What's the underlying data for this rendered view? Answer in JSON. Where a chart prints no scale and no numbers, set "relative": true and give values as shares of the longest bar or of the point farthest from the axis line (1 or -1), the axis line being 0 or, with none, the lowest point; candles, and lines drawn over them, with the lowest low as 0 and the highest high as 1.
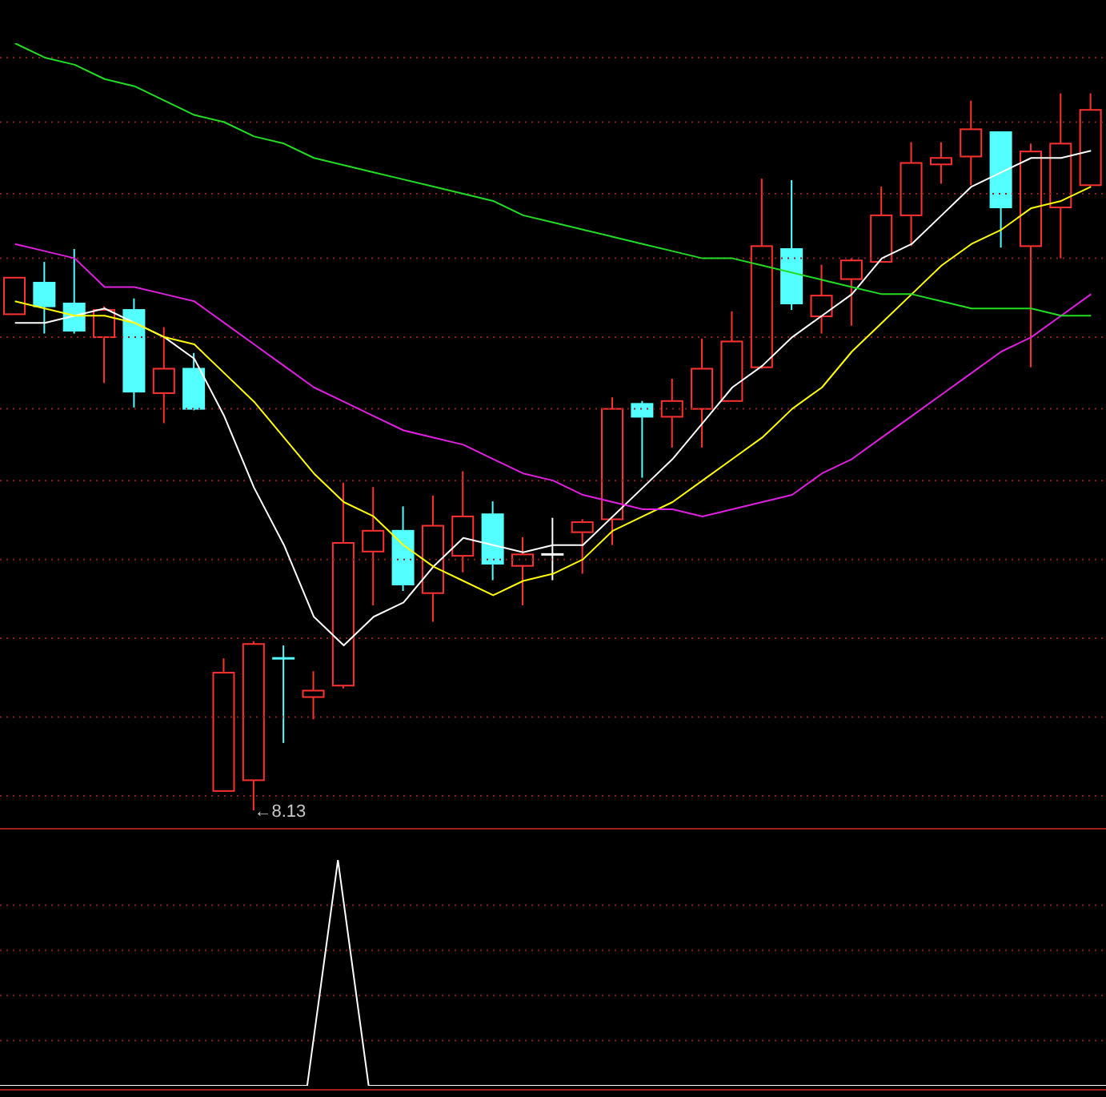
{
  "chart_data": [
    {
      "type": "candlestick",
      "relative": true,
      "tick_labels": false,
      "categories": [
        null,
        null,
        null,
        null,
        null,
        null,
        null,
        null,
        null,
        null,
        null,
        null,
        null,
        null,
        null,
        null,
        null,
        null,
        null,
        null,
        null,
        null,
        null,
        null,
        null,
        null,
        null,
        null,
        null,
        null,
        null,
        null,
        null,
        null,
        null,
        null,
        null
      ],
      "ohlc": [
        [
          0.692,
          0.743,
          0.692,
          0.743
        ],
        [
          0.736,
          0.765,
          0.665,
          0.703
        ],
        [
          0.707,
          0.783,
          0.665,
          0.669
        ],
        [
          0.66,
          0.703,
          0.596,
          0.698
        ],
        [
          0.698,
          0.714,
          0.562,
          0.584
        ],
        [
          0.582,
          0.674,
          0.54,
          0.616
        ],
        [
          0.616,
          0.638,
          0.558,
          0.56
        ],
        [
          0.027,
          0.212,
          0.027,
          0.192
        ],
        [
          0.042,
          0.236,
          0,
          0.232
        ],
        [
          0.212,
          0.23,
          0.094,
          0.212
        ],
        [
          0.158,
          0.194,
          0.127,
          0.167
        ],
        [
          0.174,
          0.457,
          0.17,
          0.373
        ],
        [
          0.361,
          0.451,
          0.286,
          0.39
        ],
        [
          0.39,
          0.424,
          0.306,
          0.315
        ],
        [
          0.303,
          0.439,
          0.263,
          0.397
        ],
        [
          0.355,
          0.473,
          0.332,
          0.41
        ],
        [
          0.413,
          0.431,
          0.321,
          0.344
        ],
        [
          0.341,
          0.381,
          0.286,
          0.357
        ],
        [
          0.357,
          0.408,
          0.321,
          0.357
        ],
        [
          0.388,
          0.406,
          0.33,
          0.402
        ],
        [
          0.406,
          0.576,
          0.37,
          0.56
        ],
        [
          0.567,
          0.571,
          0.464,
          0.549
        ],
        [
          0.549,
          0.602,
          0.506,
          0.571
        ],
        [
          0.56,
          0.658,
          0.506,
          0.616
        ],
        [
          0.571,
          0.696,
          0.571,
          0.654
        ],
        [
          0.618,
          0.881,
          0.616,
          0.787
        ],
        [
          0.783,
          0.879,
          0.698,
          0.707
        ],
        [
          0.689,
          0.761,
          0.665,
          0.718
        ],
        [
          0.741,
          0.77,
          0.676,
          0.767
        ],
        [
          0.765,
          0.87,
          0.765,
          0.83
        ],
        [
          0.83,
          0.932,
          0.787,
          0.903
        ],
        [
          0.901,
          0.932,
          0.874,
          0.91
        ],
        [
          0.912,
          0.99,
          0.872,
          0.95
        ],
        [
          0.946,
          0.946,
          0.785,
          0.841
        ],
        [
          0.787,
          0.93,
          0.618,
          0.919
        ],
        [
          0.841,
          1,
          0.77,
          0.93
        ],
        [
          0.872,
          1,
          0.872,
          0.977
        ]
      ],
      "colors": [
        "#ff3232",
        "#54ffff",
        "#54ffff",
        "#ff3232",
        "#54ffff",
        "#ff3232",
        "#54ffff",
        "#ff3232",
        "#ff3232",
        "#54ffff",
        "#ff3232",
        "#ff3232",
        "#ff3232",
        "#54ffff",
        "#ff3232",
        "#ff3232",
        "#54ffff",
        "#ff3232",
        "#ffffff",
        "#ff3232",
        "#ff3232",
        "#54ffff",
        "#ff3232",
        "#ff3232",
        "#ff3232",
        "#ff3232",
        "#54ffff",
        "#ff3232",
        "#ff3232",
        "#ff3232",
        "#ff3232",
        "#ff3232",
        "#ff3232",
        "#54ffff",
        "#ff3232",
        "#ff3232",
        "#ff3232"
      ],
      "series": [
        {
          "type": "line",
          "color": "#ffffff",
          "values": [
            0.68,
            0.68,
            0.69,
            0.7,
            0.68,
            0.66,
            0.63,
            0.55,
            0.45,
            0.37,
            0.27,
            0.23,
            0.27,
            0.29,
            0.34,
            0.38,
            0.37,
            0.36,
            0.37,
            0.37,
            0.41,
            0.45,
            0.49,
            0.54,
            0.59,
            0.62,
            0.66,
            0.69,
            0.72,
            0.77,
            0.79,
            0.83,
            0.87,
            0.89,
            0.91,
            0.91,
            0.92
          ]
        },
        {
          "type": "line",
          "color": "#ffff00",
          "values": [
            0.71,
            0.7,
            0.69,
            0.69,
            0.68,
            0.66,
            0.65,
            0.61,
            0.57,
            0.52,
            0.47,
            0.43,
            0.41,
            0.37,
            0.34,
            0.32,
            0.3,
            0.32,
            0.33,
            0.35,
            0.39,
            0.41,
            0.43,
            0.46,
            0.49,
            0.52,
            0.56,
            0.59,
            0.64,
            0.68,
            0.72,
            0.76,
            0.79,
            0.81,
            0.84,
            0.85,
            0.87
          ]
        },
        {
          "type": "line",
          "color": "#e020e0",
          "values": [
            0.79,
            0.78,
            0.77,
            0.73,
            0.73,
            0.72,
            0.71,
            0.68,
            0.65,
            0.62,
            0.59,
            0.57,
            0.55,
            0.53,
            0.52,
            0.51,
            0.49,
            0.47,
            0.46,
            0.44,
            0.43,
            0.42,
            0.42,
            0.41,
            0.42,
            0.43,
            0.44,
            0.47,
            0.49,
            0.52,
            0.55,
            0.58,
            0.61,
            0.64,
            0.66,
            0.69,
            0.72
          ]
        },
        {
          "type": "line",
          "color": "#22dd22",
          "values": [
            1.07,
            1.05,
            1.04,
            1.02,
            1.01,
            0.99,
            0.97,
            0.96,
            0.94,
            0.93,
            0.91,
            0.9,
            0.89,
            0.88,
            0.87,
            0.86,
            0.85,
            0.83,
            0.82,
            0.81,
            0.8,
            0.79,
            0.78,
            0.77,
            0.77,
            0.76,
            0.75,
            0.74,
            0.73,
            0.72,
            0.72,
            0.71,
            0.7,
            0.7,
            0.7,
            0.69,
            0.69
          ]
        }
      ],
      "ref_lines": [
        {
          "axis": "y",
          "value": 0.02,
          "color": "#8a2020",
          "line_style": "dotted"
        },
        {
          "axis": "y",
          "value": 0.13,
          "color": "#8a2020",
          "line_style": "dotted"
        },
        {
          "axis": "y",
          "value": 0.24,
          "color": "#8a2020",
          "line_style": "dotted"
        },
        {
          "axis": "y",
          "value": 0.35,
          "color": "#8a2020",
          "line_style": "dotted"
        },
        {
          "axis": "y",
          "value": 0.46,
          "color": "#8a2020",
          "line_style": "dotted"
        },
        {
          "axis": "y",
          "value": 0.56,
          "color": "#8a2020",
          "line_style": "dotted"
        },
        {
          "axis": "y",
          "value": 0.66,
          "color": "#8a2020",
          "line_style": "dotted"
        },
        {
          "axis": "y",
          "value": 0.77,
          "color": "#8a2020",
          "line_style": "dotted"
        },
        {
          "axis": "y",
          "value": 0.86,
          "color": "#8a2020",
          "line_style": "dotted"
        },
        {
          "axis": "y",
          "value": 0.96,
          "color": "#8a2020",
          "line_style": "dotted"
        },
        {
          "axis": "y",
          "value": 1.05,
          "color": "#8a2020",
          "line_style": "dotted"
        }
      ],
      "annotations": [
        "←8.13"
      ]
    },
    {
      "type": "line",
      "relative": true,
      "color": "#ffffff",
      "tick_labels": false,
      "categories": [
        null,
        null,
        null,
        null,
        null,
        null,
        null,
        null,
        null,
        null,
        null,
        null,
        null,
        null,
        null,
        null,
        null,
        null,
        null,
        null,
        null,
        null,
        null,
        null,
        null,
        null,
        null,
        null,
        null,
        null,
        null,
        null,
        null,
        null,
        null,
        null,
        null
      ],
      "values": [
        0,
        0,
        0,
        0,
        0,
        0,
        0,
        0,
        0,
        0,
        0,
        1,
        0,
        0,
        0,
        0,
        0,
        0,
        0,
        0,
        0,
        0,
        0,
        0,
        0,
        0,
        0,
        0,
        0,
        0,
        0,
        0,
        0,
        0,
        0,
        0,
        0
      ],
      "ref_lines": [
        {
          "axis": "y",
          "value": 0.2,
          "color": "#8a2020",
          "line_style": "dotted"
        },
        {
          "axis": "y",
          "value": 0.4,
          "color": "#8a2020",
          "line_style": "dotted"
        },
        {
          "axis": "y",
          "value": 0.6,
          "color": "#8a2020",
          "line_style": "dotted"
        },
        {
          "axis": "y",
          "value": 0.8,
          "color": "#8a2020",
          "line_style": "dotted"
        }
      ]
    }
  ]
}
